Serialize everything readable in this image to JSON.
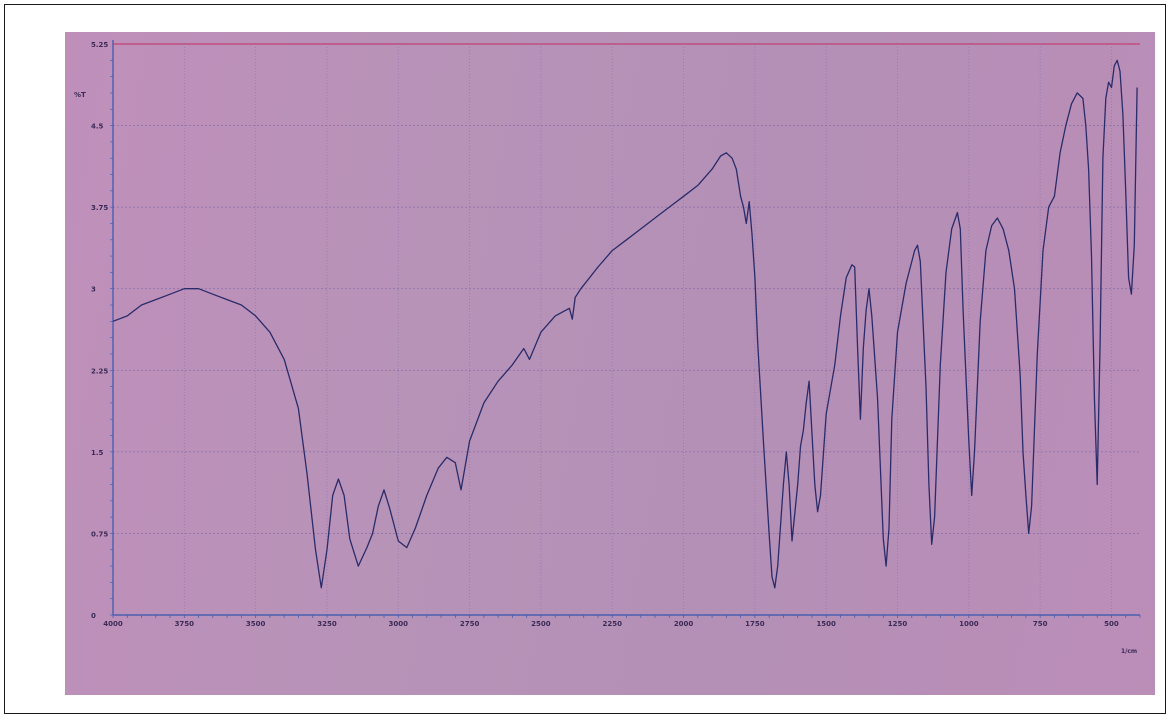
{
  "chart_data": {
    "type": "line",
    "title": "",
    "xlabel": "1/cm",
    "ylabel": "%T",
    "xlim": [
      4000,
      400
    ],
    "ylim": [
      0,
      5.25
    ],
    "x_ticks": [
      "4000",
      "3750",
      "3500",
      "3250",
      "3000",
      "2750",
      "2500",
      "2250",
      "2000",
      "1750",
      "1500",
      "1250",
      "1000",
      "750",
      "500"
    ],
    "x_tick_values": [
      4000,
      3750,
      3500,
      3250,
      3000,
      2750,
      2500,
      2250,
      2000,
      1750,
      1500,
      1250,
      1000,
      750,
      500
    ],
    "y_ticks": [
      "0",
      "0.75",
      "1.5",
      "2.25",
      "3",
      "3.75",
      "4.5",
      "5.25"
    ],
    "y_tick_values": [
      0,
      0.75,
      1.5,
      2.25,
      3,
      3.75,
      4.5,
      5.25
    ],
    "grid": true,
    "colors": {
      "line": "#2a2b6a",
      "grid": "#8a6fa8",
      "axis": "#4a5fb0",
      "top_rule": "#c2477a"
    },
    "series": [
      {
        "name": "",
        "x": [
          4000,
          3950,
          3900,
          3850,
          3800,
          3750,
          3700,
          3650,
          3600,
          3550,
          3500,
          3450,
          3400,
          3350,
          3320,
          3290,
          3270,
          3250,
          3230,
          3210,
          3190,
          3170,
          3140,
          3110,
          3090,
          3070,
          3050,
          3030,
          3000,
          2970,
          2940,
          2900,
          2860,
          2830,
          2800,
          2780,
          2750,
          2700,
          2650,
          2600,
          2560,
          2540,
          2500,
          2450,
          2400,
          2390,
          2380,
          2360,
          2300,
          2250,
          2200,
          2150,
          2100,
          2050,
          2000,
          1950,
          1900,
          1870,
          1850,
          1830,
          1815,
          1800,
          1790,
          1780,
          1770,
          1760,
          1750,
          1740,
          1720,
          1700,
          1690,
          1680,
          1670,
          1650,
          1640,
          1630,
          1620,
          1600,
          1590,
          1580,
          1570,
          1560,
          1540,
          1530,
          1520,
          1500,
          1470,
          1450,
          1430,
          1410,
          1400,
          1390,
          1380,
          1370,
          1360,
          1350,
          1340,
          1320,
          1300,
          1290,
          1280,
          1270,
          1250,
          1220,
          1200,
          1190,
          1180,
          1170,
          1150,
          1140,
          1130,
          1120,
          1100,
          1080,
          1060,
          1040,
          1030,
          1020,
          1000,
          990,
          980,
          960,
          940,
          920,
          900,
          880,
          860,
          840,
          820,
          810,
          800,
          790,
          780,
          760,
          740,
          720,
          700,
          680,
          660,
          640,
          620,
          600,
          590,
          580,
          570,
          560,
          550,
          540,
          530,
          520,
          510,
          500,
          490,
          480,
          470,
          460,
          450,
          440,
          430,
          420,
          410
        ],
        "y": [
          2.7,
          2.75,
          2.85,
          2.9,
          2.95,
          3.0,
          3.0,
          2.95,
          2.9,
          2.85,
          2.75,
          2.6,
          2.35,
          1.9,
          1.3,
          0.6,
          0.25,
          0.6,
          1.1,
          1.25,
          1.1,
          0.7,
          0.45,
          0.62,
          0.75,
          1.0,
          1.15,
          0.98,
          0.68,
          0.62,
          0.8,
          1.1,
          1.35,
          1.45,
          1.4,
          1.15,
          1.6,
          1.95,
          2.15,
          2.3,
          2.45,
          2.35,
          2.6,
          2.75,
          2.82,
          2.72,
          2.92,
          3.0,
          3.2,
          3.35,
          3.45,
          3.55,
          3.65,
          3.75,
          3.85,
          3.95,
          4.1,
          4.22,
          4.25,
          4.2,
          4.1,
          3.85,
          3.75,
          3.6,
          3.8,
          3.5,
          3.1,
          2.5,
          1.6,
          0.75,
          0.35,
          0.25,
          0.45,
          1.2,
          1.5,
          1.2,
          0.68,
          1.2,
          1.55,
          1.7,
          1.95,
          2.15,
          1.2,
          0.95,
          1.1,
          1.85,
          2.3,
          2.75,
          3.1,
          3.22,
          3.2,
          2.45,
          1.8,
          2.45,
          2.8,
          3.0,
          2.75,
          2.0,
          0.7,
          0.45,
          0.8,
          1.8,
          2.6,
          3.05,
          3.25,
          3.35,
          3.4,
          3.25,
          2.1,
          1.2,
          0.65,
          0.9,
          2.3,
          3.15,
          3.55,
          3.7,
          3.55,
          2.8,
          1.6,
          1.1,
          1.5,
          2.7,
          3.35,
          3.58,
          3.65,
          3.55,
          3.35,
          3.0,
          2.2,
          1.5,
          1.1,
          0.75,
          1.0,
          2.4,
          3.35,
          3.75,
          3.85,
          4.25,
          4.5,
          4.7,
          4.8,
          4.75,
          4.5,
          4.1,
          3.3,
          2.0,
          1.2,
          2.5,
          4.2,
          4.75,
          4.9,
          4.85,
          5.05,
          5.1,
          5.0,
          4.6,
          3.9,
          3.1,
          2.95,
          3.4,
          4.85
        ]
      }
    ]
  }
}
